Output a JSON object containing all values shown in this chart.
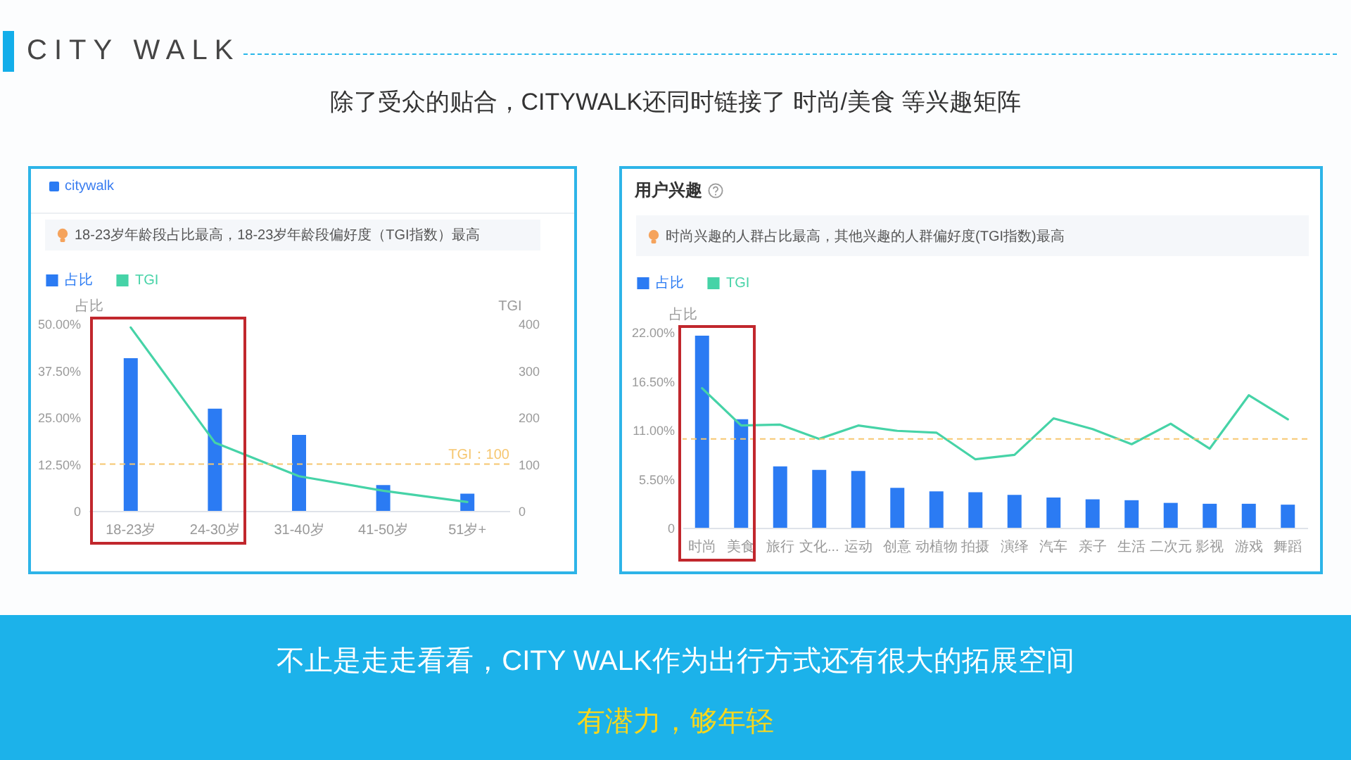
{
  "chart_data": [
    {
      "type": "other",
      "title": "CITY WALK",
      "subtitle": "除了受众的贴合，CITYWALK还同时链接了 时尚/美食 等兴趣矩阵",
      "annotations": [
        "不止是走走看看，CITY WALK作为出行方式还有很大的拓展空间",
        "有潜力，够年轻"
      ]
    },
    {
      "type": "bar",
      "title": "citywalk",
      "subtitle": "18-23岁年龄段占比最高，18-23岁年龄段偏好度（TGI指数）最高",
      "ylabel": "占比",
      "y2label": "TGI",
      "legend": "top left",
      "categories": [
        "18-23岁",
        "24-30岁",
        "31-40岁",
        "41-50岁",
        "51岁+"
      ],
      "series": [
        {
          "name": "占比",
          "type": "bar",
          "color": "#2b7bf3",
          "values": [
            40.8,
            27.3,
            20.3,
            6.9,
            4.6
          ]
        },
        {
          "name": "TGI",
          "type": "line",
          "axis": "y2",
          "color": "#46d3a7",
          "values": [
            392,
            146,
            74,
            43,
            19
          ]
        }
      ],
      "ylim": [
        0,
        50
      ],
      "yticks": [
        0,
        {
          "value": 12.5,
          "label": "12.50%"
        },
        {
          "value": 25,
          "label": "25.00%"
        },
        {
          "value": 37.5,
          "label": "37.50%"
        },
        {
          "value": 50,
          "label": "50.00%"
        }
      ],
      "y2lim": [
        0,
        400
      ],
      "y2ticks": [
        0,
        100,
        200,
        300,
        400
      ],
      "ref_lines": [
        {
          "axis": "y2",
          "value": 100,
          "label": "TGI：100",
          "color": "#f6c66f",
          "line_style": "dashed"
        }
      ]
    },
    {
      "type": "bar",
      "title": "用户兴趣",
      "subtitle": "时尚兴趣的人群占比最高，其他兴趣的人群偏好度(TGI指数)最高",
      "ylabel": "占比",
      "legend": "top left",
      "categories": [
        "时尚",
        "美食",
        "旅行",
        "文化...",
        "运动",
        "创意",
        "动植物",
        "拍摄",
        "演绎",
        "汽车",
        "亲子",
        "生活",
        "二次元",
        "影视",
        "游戏",
        "舞蹈"
      ],
      "series": [
        {
          "name": "占比",
          "type": "bar",
          "color": "#2b7bf3",
          "values": [
            21.6,
            12.2,
            6.9,
            6.5,
            6.4,
            4.5,
            4.1,
            4.0,
            3.7,
            3.4,
            3.2,
            3.1,
            2.8,
            2.7,
            2.7,
            2.6
          ]
        },
        {
          "name": "TGI",
          "type": "line",
          "color": "#46d3a7",
          "values": [
            15.7,
            11.5,
            11.6,
            10.0,
            11.5,
            10.9,
            10.7,
            7.7,
            8.2,
            12.3,
            11.1,
            9.4,
            11.7,
            8.9,
            14.9,
            12.2
          ]
        }
      ],
      "ylim": [
        0,
        22
      ],
      "yticks": [
        0,
        {
          "value": 5.5,
          "label": "5.50%"
        },
        {
          "value": 11,
          "label": "11.00%"
        },
        {
          "value": 16.5,
          "label": "16.50%"
        },
        {
          "value": 22,
          "label": "22.00%"
        }
      ],
      "ref_lines": [
        {
          "axis": "y",
          "value": 10.0,
          "color": "#f6c66f",
          "line_style": "dashed"
        }
      ]
    }
  ]
}
